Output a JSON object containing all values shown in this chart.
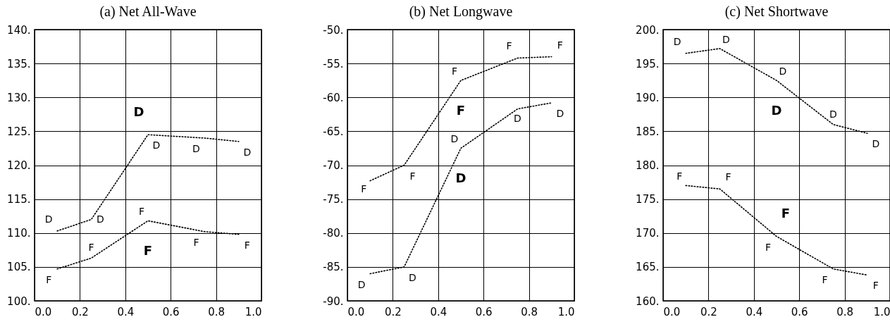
{
  "chart_data": [
    {
      "type": "line",
      "title": "(a) Net All-Wave",
      "x": [
        0.1,
        0.25,
        0.5,
        0.75,
        0.9
      ],
      "series": [
        {
          "name": "D",
          "color": "#000000",
          "values": [
            110.3,
            112.0,
            124.5,
            124.0,
            123.5
          ]
        },
        {
          "name": "F",
          "color": "#000000",
          "values": [
            104.7,
            106.3,
            111.8,
            110.2,
            109.8
          ]
        }
      ],
      "xlim": [
        0,
        1
      ],
      "xticks": [
        {
          "value": 0,
          "label": "0.0"
        },
        {
          "value": 0.2,
          "label": "0.2"
        },
        {
          "value": 0.4,
          "label": "0.4"
        },
        {
          "value": 0.6,
          "label": "0.6"
        },
        {
          "value": 0.8,
          "label": "0.8"
        },
        {
          "value": 1,
          "label": "1.0"
        }
      ],
      "ylim": [
        100,
        140
      ],
      "yticks": [
        {
          "value": 100,
          "label": "100."
        },
        {
          "value": 105,
          "label": "105."
        },
        {
          "value": 110,
          "label": "110."
        },
        {
          "value": 115,
          "label": "115."
        },
        {
          "value": 120,
          "label": "120."
        },
        {
          "value": 125,
          "label": "125."
        },
        {
          "value": 130,
          "label": "130."
        },
        {
          "value": 135,
          "label": "135."
        },
        {
          "value": 140,
          "label": "140."
        }
      ],
      "grid": true,
      "line_style": "dotted"
    },
    {
      "type": "line",
      "title": "(b) Net Longwave",
      "x": [
        0.1,
        0.25,
        0.5,
        0.75,
        0.9
      ],
      "series": [
        {
          "name": "F",
          "color": "#000000",
          "values": [
            -72.3,
            -70.0,
            -57.5,
            -54.2,
            -54.0
          ]
        },
        {
          "name": "D",
          "color": "#000000",
          "values": [
            -86.0,
            -85.0,
            -67.5,
            -61.7,
            -60.8
          ]
        }
      ],
      "xlim": [
        0,
        1
      ],
      "xticks": [
        {
          "value": 0,
          "label": "0.0"
        },
        {
          "value": 0.2,
          "label": "0.2"
        },
        {
          "value": 0.4,
          "label": "0.4"
        },
        {
          "value": 0.6,
          "label": "0.6"
        },
        {
          "value": 0.8,
          "label": "0.8"
        },
        {
          "value": 1,
          "label": "1.0"
        }
      ],
      "ylim": [
        -90,
        -50
      ],
      "yticks": [
        {
          "value": -90,
          "label": "-90."
        },
        {
          "value": -85,
          "label": "-85."
        },
        {
          "value": -80,
          "label": "-80."
        },
        {
          "value": -75,
          "label": "-75."
        },
        {
          "value": -70,
          "label": "-70."
        },
        {
          "value": -65,
          "label": "-65."
        },
        {
          "value": -60,
          "label": "-60."
        },
        {
          "value": -55,
          "label": "-55."
        },
        {
          "value": -50,
          "label": "-50."
        }
      ],
      "grid": true,
      "line_style": "dotted"
    },
    {
      "type": "line",
      "title": "(c) Net Shortwave",
      "x": [
        0.1,
        0.25,
        0.5,
        0.75,
        0.9
      ],
      "series": [
        {
          "name": "D",
          "color": "#000000",
          "values": [
            196.5,
            197.2,
            192.5,
            186.0,
            184.7
          ]
        },
        {
          "name": "F",
          "color": "#000000",
          "values": [
            177.0,
            176.5,
            169.5,
            164.7,
            163.8
          ]
        }
      ],
      "xlim": [
        0,
        1
      ],
      "xticks": [
        {
          "value": 0,
          "label": "0.0"
        },
        {
          "value": 0.2,
          "label": "0.2"
        },
        {
          "value": 0.4,
          "label": "0.4"
        },
        {
          "value": 0.6,
          "label": "0.6"
        },
        {
          "value": 0.8,
          "label": "0.8"
        },
        {
          "value": 1,
          "label": "1.0"
        }
      ],
      "ylim": [
        160,
        200
      ],
      "yticks": [
        {
          "value": 160,
          "label": "160."
        },
        {
          "value": 165,
          "label": "165."
        },
        {
          "value": 170,
          "label": "170."
        },
        {
          "value": 175,
          "label": "175."
        },
        {
          "value": 180,
          "label": "180."
        },
        {
          "value": 185,
          "label": "185."
        },
        {
          "value": 190,
          "label": "190."
        },
        {
          "value": 195,
          "label": "195."
        },
        {
          "value": 200,
          "label": "200."
        }
      ],
      "grid": true,
      "line_style": "dotted"
    }
  ]
}
